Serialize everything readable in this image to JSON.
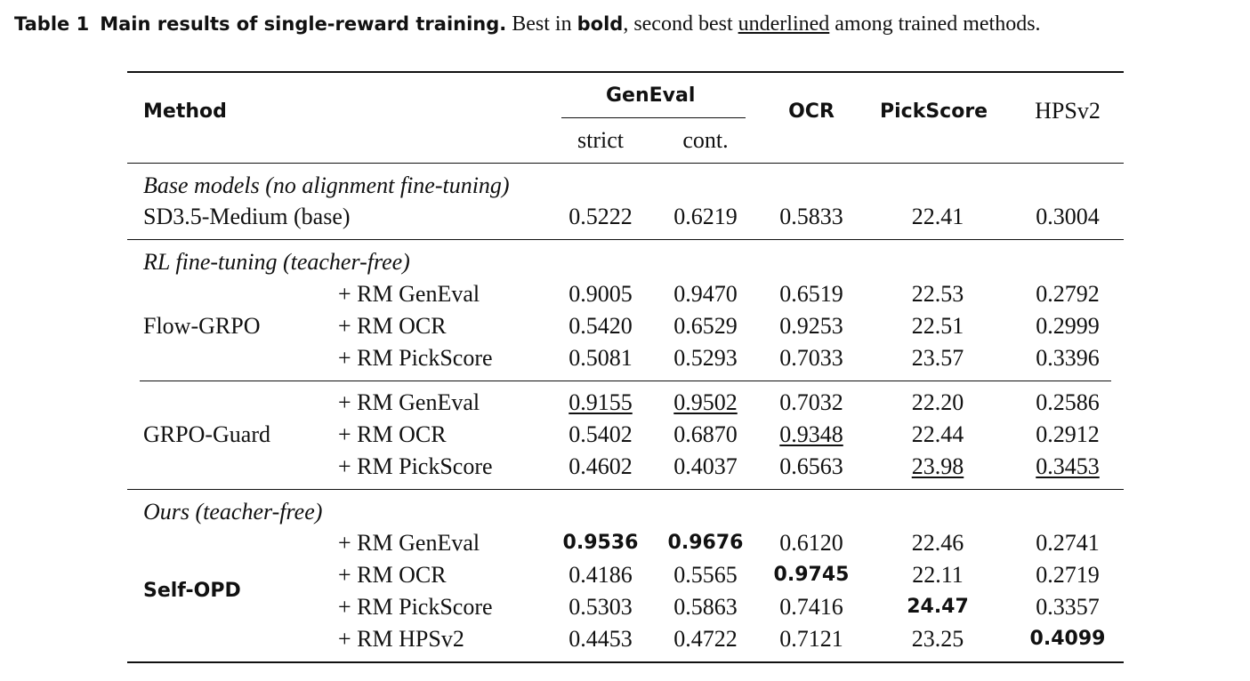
{
  "caption": {
    "label": "Table 1",
    "title": "Main results of single-reward training.",
    "text_before_bold": "Best in",
    "bold_word": "bold",
    "text_mid": ", second best",
    "underline_word": "underlined",
    "text_end": "among trained methods."
  },
  "header": {
    "method": "Method",
    "geneval": "GenEval",
    "strict": "strict",
    "cont": "cont.",
    "ocr": "OCR",
    "pickscore": "PickScore",
    "hpsv2": "HPSv2"
  },
  "sections": {
    "base": "Base models (no alignment fine-tuning)",
    "rl": "RL fine-tuning (teacher-free)",
    "ours": "Ours (teacher-free)"
  },
  "groups": {
    "sd35": "SD3.5-Medium (base)",
    "flow": "Flow-GRPO",
    "guard": "GRPO-Guard",
    "selfopd": "Self-OPD"
  },
  "rows": {
    "sd35": {
      "variant": "",
      "strict": "0.5222",
      "cont": "0.6219",
      "ocr": "0.5833",
      "pick": "22.41",
      "hps": "0.3004"
    },
    "flow_geneval": {
      "variant": "+ RM GenEval",
      "strict": "0.9005",
      "cont": "0.9470",
      "ocr": "0.6519",
      "pick": "22.53",
      "hps": "0.2792"
    },
    "flow_ocr": {
      "variant": "+ RM OCR",
      "strict": "0.5420",
      "cont": "0.6529",
      "ocr": "0.9253",
      "pick": "22.51",
      "hps": "0.2999"
    },
    "flow_pick": {
      "variant": "+ RM PickScore",
      "strict": "0.5081",
      "cont": "0.5293",
      "ocr": "0.7033",
      "pick": "23.57",
      "hps": "0.3396"
    },
    "guard_geneval": {
      "variant": "+ RM GenEval",
      "strict": "0.9155",
      "cont": "0.9502",
      "ocr": "0.7032",
      "pick": "22.20",
      "hps": "0.2586"
    },
    "guard_ocr": {
      "variant": "+ RM OCR",
      "strict": "0.5402",
      "cont": "0.6870",
      "ocr": "0.9348",
      "pick": "22.44",
      "hps": "0.2912"
    },
    "guard_pick": {
      "variant": "+ RM PickScore",
      "strict": "0.4602",
      "cont": "0.4037",
      "ocr": "0.6563",
      "pick": "23.98",
      "hps": "0.3453"
    },
    "self_geneval": {
      "variant": "+ RM GenEval",
      "strict": "0.9536",
      "cont": "0.9676",
      "ocr": "0.6120",
      "pick": "22.46",
      "hps": "0.2741"
    },
    "self_ocr": {
      "variant": "+ RM OCR",
      "strict": "0.4186",
      "cont": "0.5565",
      "ocr": "0.9745",
      "pick": "22.11",
      "hps": "0.2719"
    },
    "self_pick": {
      "variant": "+ RM PickScore",
      "strict": "0.5303",
      "cont": "0.5863",
      "ocr": "0.7416",
      "pick": "24.47",
      "hps": "0.3357"
    },
    "self_hps": {
      "variant": "+ RM HPSv2",
      "strict": "0.4453",
      "cont": "0.4722",
      "ocr": "0.7121",
      "pick": "23.25",
      "hps": "0.4099"
    }
  }
}
